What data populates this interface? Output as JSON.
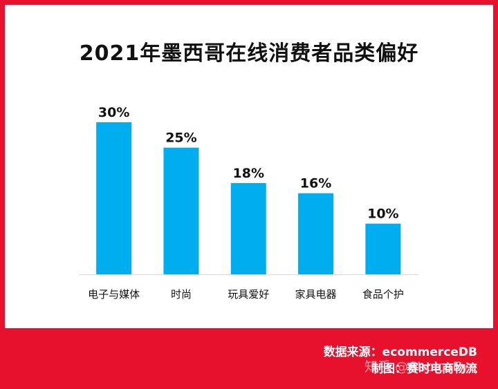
{
  "title": "2021年墨西哥在线消费者品类偏好",
  "chart_data": {
    "type": "bar",
    "title": "2021年墨西哥在线消费者品类偏好",
    "categories": [
      "电子与媒体",
      "时尚",
      "玩具爱好",
      "家具电器",
      "食品个护"
    ],
    "values": [
      30,
      25,
      18,
      16,
      10
    ],
    "value_labels": [
      "30%",
      "25%",
      "18%",
      "16%",
      "10%"
    ],
    "unit": "%",
    "ylim": [
      0,
      30
    ],
    "grid": false,
    "bar_color": "#00aeef"
  },
  "footer": {
    "source": "数据来源：ecommerceDB",
    "made_by": "制图：赛时电商物流"
  },
  "watermark": "知乎 @ChoiceEye",
  "colors": {
    "frame": "#e8112d",
    "card": "#ffffff",
    "bar": "#00aeef"
  }
}
